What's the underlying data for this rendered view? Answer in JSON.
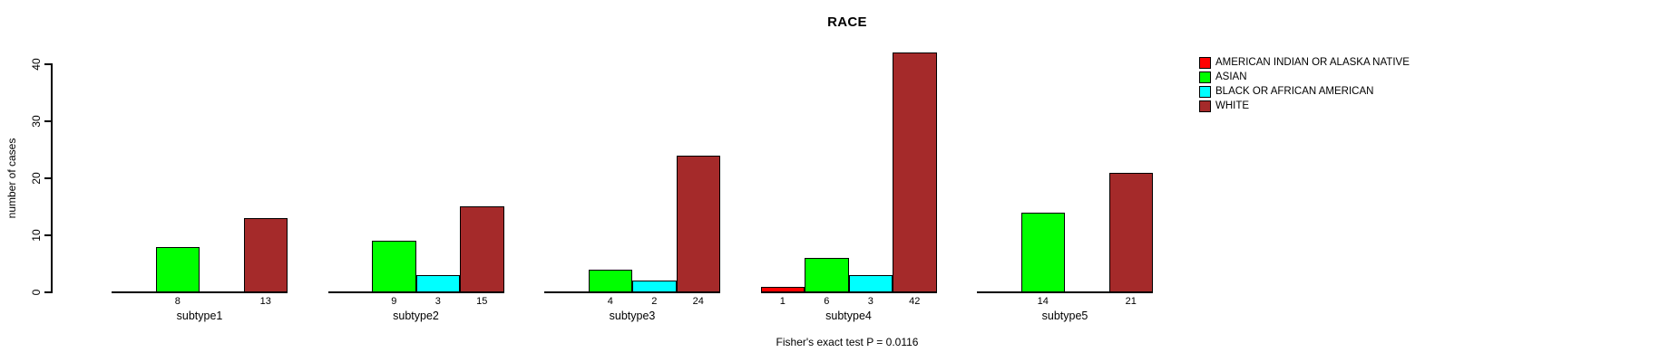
{
  "chart_data": {
    "type": "bar",
    "title": "RACE",
    "ylabel": "number of cases",
    "footer": "Fisher's exact test P = 0.0116",
    "categories": [
      "subtype1",
      "subtype2",
      "subtype3",
      "subtype4",
      "subtype5"
    ],
    "series": [
      {
        "name": "AMERICAN INDIAN OR ALASKA NATIVE",
        "color": "#FF0000",
        "values": [
          0,
          0,
          0,
          1,
          0
        ]
      },
      {
        "name": "ASIAN",
        "color": "#00FF00",
        "values": [
          8,
          9,
          4,
          6,
          14
        ]
      },
      {
        "name": "BLACK OR AFRICAN AMERICAN",
        "color": "#00FFFF",
        "values": [
          0,
          3,
          2,
          3,
          0
        ]
      },
      {
        "name": "WHITE",
        "color": "#A52A2A",
        "values": [
          13,
          15,
          24,
          42,
          21
        ]
      }
    ],
    "yticks": [
      0,
      10,
      20,
      30,
      40
    ],
    "ylim": [
      0,
      42
    ],
    "grid": false,
    "legend_position": "top-right",
    "bar_value_labels_shown": true,
    "zero_values_unlabeled": true,
    "text_color": "#000000",
    "background_color": "#FFFFFF"
  }
}
